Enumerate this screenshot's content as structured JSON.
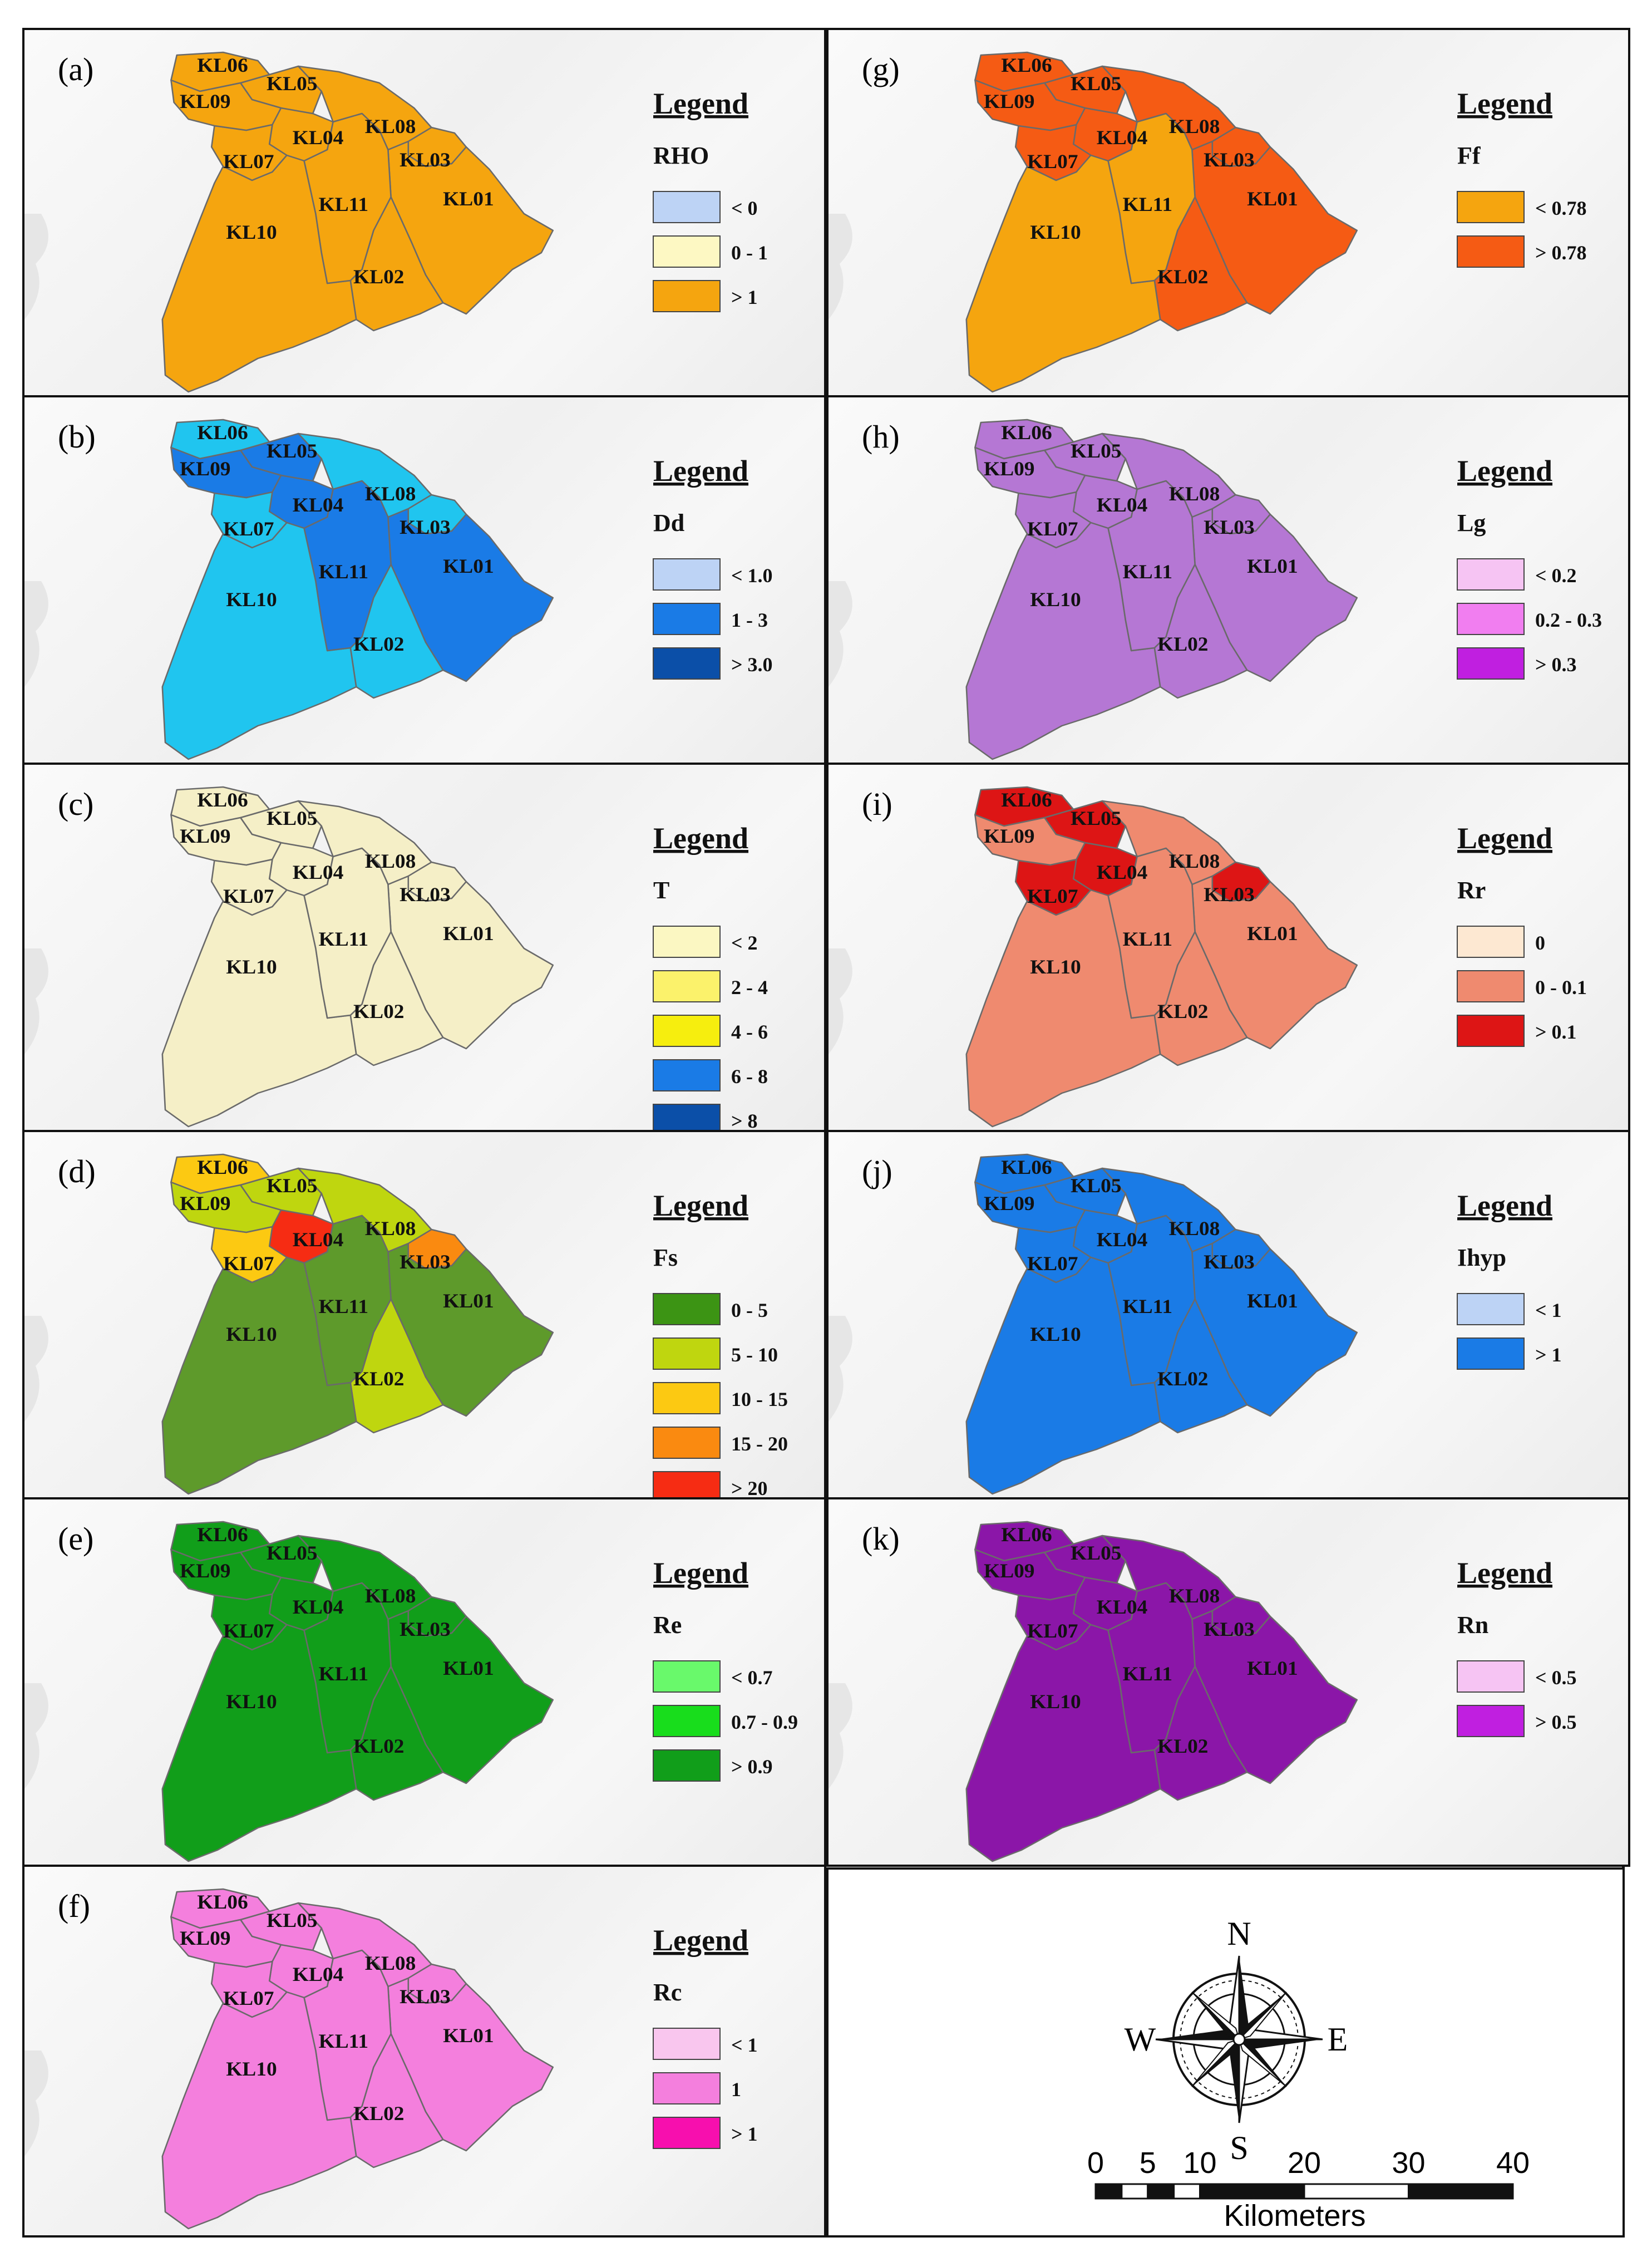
{
  "regions": [
    "KL01",
    "KL02",
    "KL03",
    "KL04",
    "KL05",
    "KL06",
    "KL07",
    "KL08",
    "KL09",
    "KL10",
    "KL11"
  ],
  "legend_title": "Legend",
  "panels": [
    {
      "label": "(a)",
      "variable": "RHO",
      "classes": [
        {
          "label": "< 0",
          "color": "#bdd3f5"
        },
        {
          "label": "0 - 1",
          "color": "#fdf8c3"
        },
        {
          "label": "> 1",
          "color": "#f5a50f"
        }
      ],
      "fills": {
        "KL01": "#f5a50f",
        "KL02": "#f5a50f",
        "KL03": "#f5a50f",
        "KL04": "#f5a50f",
        "KL05": "#f5a50f",
        "KL06": "#f5a50f",
        "KL07": "#f5a50f",
        "KL08": "#f5a50f",
        "KL09": "#f5a50f",
        "KL10": "#f5a50f",
        "KL11": "#f5a50f"
      }
    },
    {
      "label": "(g)",
      "variable": "Ff",
      "classes": [
        {
          "label": "< 0.78",
          "color": "#f5a50f"
        },
        {
          "label": "> 0.78",
          "color": "#f55b14"
        }
      ],
      "fills": {
        "KL01": "#f55b14",
        "KL02": "#f55b14",
        "KL03": "#f55b14",
        "KL04": "#f55b14",
        "KL05": "#f55b14",
        "KL06": "#f55b14",
        "KL07": "#f55b14",
        "KL08": "#f55b14",
        "KL09": "#f55b14",
        "KL10": "#f5a50f",
        "KL11": "#f5a50f"
      }
    },
    {
      "label": "(b)",
      "variable": "Dd",
      "classes": [
        {
          "label": "< 1.0",
          "color": "#bdd3f5"
        },
        {
          "label": "1 - 3",
          "color": "#1a7be6"
        },
        {
          "label": "> 3.0",
          "color": "#0b4fa8"
        }
      ],
      "fills": {
        "KL01": "#1a7be6",
        "KL02": "#20c5ef",
        "KL03": "#20c5ef",
        "KL04": "#1a7be6",
        "KL05": "#1a7be6",
        "KL06": "#20c5ef",
        "KL07": "#20c5ef",
        "KL08": "#20c5ef",
        "KL09": "#1a7be6",
        "KL10": "#20c5ef",
        "KL11": "#1a7be6"
      }
    },
    {
      "label": "(h)",
      "variable": "Lg",
      "classes": [
        {
          "label": "< 0.2",
          "color": "#f6c4f3"
        },
        {
          "label": "0.2 - 0.3",
          "color": "#f17ef0"
        },
        {
          "label": "> 0.3",
          "color": "#c01fe0"
        }
      ],
      "fills": {
        "KL01": "#b577d4",
        "KL02": "#b577d4",
        "KL03": "#b577d4",
        "KL04": "#b577d4",
        "KL05": "#b577d4",
        "KL06": "#b577d4",
        "KL07": "#b577d4",
        "KL08": "#b577d4",
        "KL09": "#b577d4",
        "KL10": "#b577d4",
        "KL11": "#b577d4"
      }
    },
    {
      "label": "(c)",
      "variable": "T",
      "classes": [
        {
          "label": "< 2",
          "color": "#fbf7c2"
        },
        {
          "label": "2 - 4",
          "color": "#fbf26b"
        },
        {
          "label": "4 - 6",
          "color": "#f6ee0e"
        },
        {
          "label": "6 - 8",
          "color": "#1a7be6"
        },
        {
          "label": "> 8",
          "color": "#0b4fa8"
        }
      ],
      "fills": {
        "KL01": "#f5efc7",
        "KL02": "#f5efc7",
        "KL03": "#f5efc7",
        "KL04": "#f5efc7",
        "KL05": "#f5efc7",
        "KL06": "#f5efc7",
        "KL07": "#f5efc7",
        "KL08": "#f5efc7",
        "KL09": "#f5efc7",
        "KL10": "#f5efc7",
        "KL11": "#f5efc7"
      }
    },
    {
      "label": "(i)",
      "variable": "Rr",
      "classes": [
        {
          "label": "0",
          "color": "#fde8d2"
        },
        {
          "label": "0 - 0.1",
          "color": "#ef8a6f"
        },
        {
          "label": "> 0.1",
          "color": "#dd1515"
        }
      ],
      "fills": {
        "KL01": "#ef8a6f",
        "KL02": "#ef8a6f",
        "KL03": "#dd1515",
        "KL04": "#dd1515",
        "KL05": "#dd1515",
        "KL06": "#dd1515",
        "KL07": "#dd1515",
        "KL08": "#ef8a6f",
        "KL09": "#ef8a6f",
        "KL10": "#ef8a6f",
        "KL11": "#ef8a6f"
      }
    },
    {
      "label": "(d)",
      "variable": "Fs",
      "classes": [
        {
          "label": "0 - 5",
          "color": "#3c9414"
        },
        {
          "label": "5 - 10",
          "color": "#bfd60f"
        },
        {
          "label": "10 - 15",
          "color": "#fcc912"
        },
        {
          "label": "15 - 20",
          "color": "#fa8a10"
        },
        {
          "label": "> 20",
          "color": "#f62c13"
        }
      ],
      "fills": {
        "KL01": "#5e9a2b",
        "KL02": "#bfd60f",
        "KL03": "#fa8a10",
        "KL04": "#f62c13",
        "KL05": "#bfd60f",
        "KL06": "#fcc912",
        "KL07": "#fcc912",
        "KL08": "#bfd60f",
        "KL09": "#bfd60f",
        "KL10": "#5e9a2b",
        "KL11": "#5e9a2b"
      }
    },
    {
      "label": "(j)",
      "variable": "Ihyp",
      "classes": [
        {
          "label": "< 1",
          "color": "#bdd3f5"
        },
        {
          "label": "> 1",
          "color": "#1a7be6"
        }
      ],
      "fills": {
        "KL01": "#1a7be6",
        "KL02": "#1a7be6",
        "KL03": "#1a7be6",
        "KL04": "#1a7be6",
        "KL05": "#1a7be6",
        "KL06": "#1a7be6",
        "KL07": "#1a7be6",
        "KL08": "#1a7be6",
        "KL09": "#1a7be6",
        "KL10": "#1a7be6",
        "KL11": "#1a7be6"
      }
    },
    {
      "label": "(e)",
      "variable": "Re",
      "classes": [
        {
          "label": "< 0.7",
          "color": "#69f96b"
        },
        {
          "label": "0.7 - 0.9",
          "color": "#18dd1c"
        },
        {
          "label": "> 0.9",
          "color": "#119e1a"
        }
      ],
      "fills": {
        "KL01": "#119e1a",
        "KL02": "#119e1a",
        "KL03": "#119e1a",
        "KL04": "#119e1a",
        "KL05": "#119e1a",
        "KL06": "#119e1a",
        "KL07": "#119e1a",
        "KL08": "#119e1a",
        "KL09": "#119e1a",
        "KL10": "#119e1a",
        "KL11": "#119e1a"
      }
    },
    {
      "label": "(k)",
      "variable": "Rn",
      "classes": [
        {
          "label": "< 0.5",
          "color": "#f6c4f3"
        },
        {
          "label": "> 0.5",
          "color": "#c01fe0"
        }
      ],
      "fills": {
        "KL01": "#8b16a8",
        "KL02": "#8b16a8",
        "KL03": "#8b16a8",
        "KL04": "#8b16a8",
        "KL05": "#8b16a8",
        "KL06": "#8b16a8",
        "KL07": "#8b16a8",
        "KL08": "#8b16a8",
        "KL09": "#8b16a8",
        "KL10": "#8b16a8",
        "KL11": "#8b16a8"
      }
    },
    {
      "label": "(f)",
      "variable": "Rc",
      "classes": [
        {
          "label": "< 1",
          "color": "#f9c6ee"
        },
        {
          "label": "1",
          "color": "#f47fdd"
        },
        {
          "label": "> 1",
          "color": "#f70fae"
        }
      ],
      "fills": {
        "KL01": "#f47fdd",
        "KL02": "#f47fdd",
        "KL03": "#f47fdd",
        "KL04": "#f47fdd",
        "KL05": "#f47fdd",
        "KL06": "#f47fdd",
        "KL07": "#f47fdd",
        "KL08": "#f47fdd",
        "KL09": "#f47fdd",
        "KL10": "#f47fdd",
        "KL11": "#f47fdd"
      }
    }
  ],
  "compass": {
    "n": "N",
    "s": "S",
    "e": "E",
    "w": "W"
  },
  "scalebar": {
    "ticks": [
      "0",
      "5",
      "10",
      "20",
      "30",
      "40"
    ],
    "unit": "Kilometers"
  }
}
